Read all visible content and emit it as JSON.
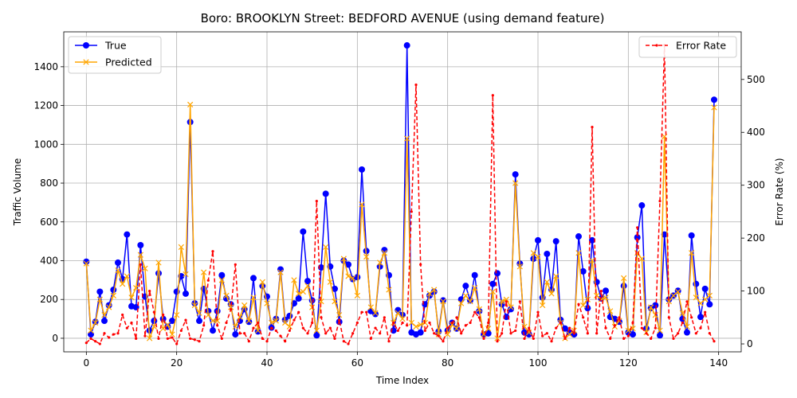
{
  "chart_data": {
    "type": "line",
    "title": "Boro: BROOKLYN Street: BEDFORD AVENUE (using demand feature)",
    "xlabel": "Time Index",
    "ylabel": "Traffic Volume",
    "y2label": "Error Rate (%)",
    "xlim": [
      -5,
      145
    ],
    "ylim": [
      -70,
      1580
    ],
    "y2lim": [
      -15,
      590
    ],
    "xticks": [
      0,
      20,
      40,
      60,
      80,
      100,
      120,
      140
    ],
    "yticks": [
      0,
      200,
      400,
      600,
      800,
      1000,
      1200,
      1400
    ],
    "y2ticks": [
      0,
      100,
      200,
      300,
      400,
      500
    ],
    "grid": true,
    "legend_left_position": "upper-left",
    "legend_right_position": "upper-right",
    "series": [
      {
        "name": "True",
        "axis": "left",
        "color": "#0000ff",
        "marker": "circle",
        "values": [
          395,
          20,
          85,
          240,
          90,
          170,
          250,
          390,
          305,
          535,
          165,
          160,
          480,
          215,
          40,
          90,
          335,
          100,
          60,
          90,
          240,
          320,
          230,
          1115,
          180,
          90,
          255,
          140,
          40,
          140,
          325,
          205,
          175,
          20,
          90,
          150,
          85,
          310,
          35,
          270,
          215,
          55,
          100,
          355,
          95,
          115,
          180,
          205,
          550,
          295,
          195,
          15,
          365,
          745,
          370,
          255,
          85,
          400,
          380,
          305,
          315,
          870,
          450,
          140,
          125,
          370,
          455,
          325,
          40,
          145,
          120,
          1510,
          30,
          20,
          30,
          175,
          220,
          240,
          35,
          195,
          40,
          80,
          50,
          200,
          270,
          195,
          325,
          140,
          20,
          25,
          280,
          335,
          175,
          110,
          150,
          845,
          385,
          30,
          20,
          410,
          505,
          210,
          435,
          250,
          500,
          95,
          50,
          30,
          20,
          525,
          345,
          155,
          505,
          290,
          205,
          245,
          110,
          100,
          85,
          270,
          30,
          20,
          520,
          685,
          50,
          155,
          170,
          15,
          535,
          200,
          220,
          245,
          100,
          30,
          530,
          280,
          110,
          255,
          175,
          1230
        ]
      },
      {
        "name": "Predicted",
        "axis": "left",
        "color": "#ffa500",
        "marker": "x",
        "values": [
          385,
          40,
          80,
          200,
          120,
          160,
          220,
          350,
          280,
          320,
          210,
          260,
          430,
          360,
          0,
          60,
          390,
          50,
          70,
          20,
          120,
          470,
          330,
          1205,
          170,
          130,
          340,
          120,
          90,
          90,
          300,
          220,
          160,
          60,
          110,
          170,
          90,
          210,
          40,
          290,
          180,
          80,
          90,
          340,
          80,
          60,
          300,
          230,
          240,
          270,
          160,
          40,
          190,
          470,
          290,
          190,
          120,
          410,
          320,
          310,
          220,
          690,
          420,
          160,
          130,
          390,
          440,
          250,
          80,
          130,
          100,
          1030,
          80,
          60,
          70,
          80,
          230,
          250,
          20,
          190,
          20,
          70,
          50,
          180,
          220,
          190,
          260,
          150,
          20,
          50,
          240,
          0,
          190,
          200,
          160,
          800,
          370,
          60,
          30,
          440,
          420,
          170,
          290,
          230,
          320,
          80,
          0,
          20,
          40,
          440,
          170,
          200,
          400,
          220,
          200,
          210,
          140,
          60,
          90,
          310,
          40,
          50,
          440,
          410,
          30,
          160,
          120,
          40,
          1040,
          190,
          220,
          240,
          130,
          60,
          440,
          210,
          180,
          200,
          220,
          1190
        ]
      },
      {
        "name": "Error Rate",
        "axis": "right",
        "color": "#ff0000",
        "style": "dashed",
        "marker": "dot",
        "values": [
          2,
          10,
          5,
          0,
          20,
          12,
          18,
          20,
          55,
          30,
          40,
          10,
          150,
          15,
          100,
          60,
          10,
          55,
          10,
          12,
          0,
          25,
          45,
          10,
          8,
          5,
          35,
          120,
          175,
          35,
          10,
          40,
          65,
          150,
          20,
          20,
          5,
          30,
          40,
          10,
          5,
          30,
          25,
          15,
          5,
          25,
          45,
          60,
          30,
          20,
          40,
          270,
          50,
          20,
          30,
          10,
          45,
          5,
          0,
          20,
          40,
          60,
          60,
          10,
          30,
          20,
          50,
          5,
          40,
          25,
          40,
          35,
          250,
          490,
          150,
          25,
          40,
          20,
          15,
          5,
          30,
          40,
          50,
          20,
          35,
          40,
          60,
          50,
          10,
          40,
          470,
          5,
          20,
          80,
          20,
          25,
          80,
          10,
          30,
          10,
          60,
          15,
          20,
          5,
          30,
          40,
          10,
          30,
          20,
          75,
          50,
          20,
          410,
          20,
          100,
          30,
          10,
          35,
          50,
          10,
          15,
          40,
          220,
          30,
          20,
          10,
          30,
          270,
          565,
          50,
          10,
          20,
          40,
          80,
          50,
          20,
          30,
          60,
          20,
          5
        ]
      }
    ]
  }
}
